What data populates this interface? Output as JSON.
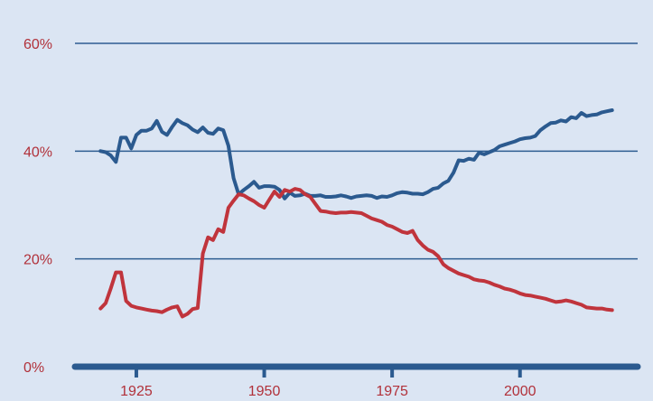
{
  "chart_data": {
    "type": "line",
    "title": "",
    "xlabel": "",
    "ylabel": "",
    "xlim": [
      1913,
      2023
    ],
    "ylim": [
      0,
      60
    ],
    "grid": true,
    "legend": "none",
    "y_ticks": [
      {
        "value": 0,
        "label": "0%"
      },
      {
        "value": 20,
        "label": "20%"
      },
      {
        "value": 40,
        "label": "40%"
      },
      {
        "value": 60,
        "label": "60%"
      }
    ],
    "x_ticks": [
      {
        "value": 1925,
        "label": "1925"
      },
      {
        "value": 1950,
        "label": "1950"
      },
      {
        "value": 1975,
        "label": "1975"
      },
      {
        "value": 2000,
        "label": "2000"
      }
    ],
    "colors": {
      "background": "#dbe5f3",
      "grid": "#2e5d91",
      "tick_labels": "#b1313a",
      "baseline": "#2b5a8f"
    },
    "series": [
      {
        "color": "#2b5a8f",
        "x": [
          1918,
          1919,
          1920,
          1921,
          1922,
          1923,
          1924,
          1925,
          1926,
          1927,
          1928,
          1929,
          1930,
          1931,
          1932,
          1933,
          1934,
          1935,
          1936,
          1937,
          1938,
          1939,
          1940,
          1941,
          1942,
          1943,
          1944,
          1945,
          1946,
          1947,
          1948,
          1949,
          1950,
          1951,
          1952,
          1953,
          1954,
          1955,
          1956,
          1957,
          1958,
          1959,
          1960,
          1961,
          1962,
          1963,
          1964,
          1965,
          1966,
          1967,
          1968,
          1969,
          1970,
          1971,
          1972,
          1973,
          1974,
          1975,
          1976,
          1977,
          1978,
          1979,
          1980,
          1981,
          1982,
          1983,
          1984,
          1985,
          1986,
          1987,
          1988,
          1989,
          1990,
          1991,
          1992,
          1993,
          1994,
          1995,
          1996,
          1997,
          1998,
          1999,
          2000,
          2001,
          2002,
          2003,
          2004,
          2005,
          2006,
          2007,
          2008,
          2009,
          2010,
          2011,
          2012,
          2013,
          2014,
          2015,
          2016,
          2017,
          2018
        ],
        "y": [
          40.0,
          39.8,
          39.2,
          38.0,
          42.5,
          42.5,
          40.5,
          43.0,
          43.8,
          43.8,
          44.2,
          45.6,
          43.6,
          43.0,
          44.5,
          45.8,
          45.2,
          44.8,
          44.0,
          43.5,
          44.4,
          43.4,
          43.2,
          44.2,
          43.9,
          41.0,
          35.0,
          32.0,
          32.8,
          33.5,
          34.3,
          33.2,
          33.5,
          33.5,
          33.4,
          32.8,
          31.2,
          32.3,
          31.7,
          31.8,
          32.1,
          31.7,
          31.7,
          31.8,
          31.5,
          31.5,
          31.6,
          31.8,
          31.6,
          31.3,
          31.6,
          31.7,
          31.8,
          31.7,
          31.3,
          31.6,
          31.5,
          31.8,
          32.2,
          32.4,
          32.3,
          32.1,
          32.1,
          32.0,
          32.4,
          33.0,
          33.2,
          34.0,
          34.5,
          36.0,
          38.3,
          38.2,
          38.6,
          38.4,
          39.7,
          39.4,
          39.8,
          40.2,
          40.9,
          41.2,
          41.5,
          41.8,
          42.2,
          42.4,
          42.5,
          42.8,
          43.9,
          44.6,
          45.2,
          45.3,
          45.7,
          45.5,
          46.3,
          46.1,
          47.1,
          46.5,
          46.7,
          46.8,
          47.2,
          47.4,
          47.6
        ]
      },
      {
        "color": "#c0343c",
        "x": [
          1918,
          1919,
          1920,
          1921,
          1922,
          1923,
          1924,
          1925,
          1926,
          1927,
          1928,
          1929,
          1930,
          1931,
          1932,
          1933,
          1934,
          1935,
          1936,
          1937,
          1938,
          1939,
          1940,
          1941,
          1942,
          1943,
          1944,
          1945,
          1946,
          1947,
          1948,
          1949,
          1950,
          1951,
          1952,
          1953,
          1954,
          1955,
          1956,
          1957,
          1958,
          1959,
          1960,
          1961,
          1962,
          1963,
          1964,
          1965,
          1966,
          1967,
          1968,
          1969,
          1970,
          1971,
          1972,
          1973,
          1974,
          1975,
          1976,
          1977,
          1978,
          1979,
          1980,
          1981,
          1982,
          1983,
          1984,
          1985,
          1986,
          1987,
          1988,
          1989,
          1990,
          1991,
          1992,
          1993,
          1994,
          1995,
          1996,
          1997,
          1998,
          1999,
          2000,
          2001,
          2002,
          2003,
          2004,
          2005,
          2006,
          2007,
          2008,
          2009,
          2010,
          2011,
          2012,
          2013,
          2014,
          2015,
          2016,
          2017,
          2018
        ],
        "y": [
          10.8,
          11.8,
          14.5,
          17.5,
          17.5,
          12.2,
          11.3,
          11.0,
          10.8,
          10.6,
          10.4,
          10.3,
          10.1,
          10.6,
          11.0,
          11.2,
          9.3,
          9.8,
          10.7,
          10.9,
          21.0,
          24.0,
          23.5,
          25.5,
          25.0,
          29.5,
          30.8,
          32.0,
          31.8,
          31.2,
          30.7,
          30.0,
          29.5,
          31.0,
          32.5,
          31.5,
          32.8,
          32.5,
          33.0,
          32.8,
          32.0,
          31.5,
          30.2,
          28.9,
          28.8,
          28.6,
          28.5,
          28.6,
          28.6,
          28.7,
          28.6,
          28.5,
          28.0,
          27.5,
          27.2,
          26.9,
          26.3,
          26.0,
          25.5,
          25.0,
          24.8,
          25.2,
          23.5,
          22.5,
          21.7,
          21.3,
          20.5,
          19.0,
          18.3,
          17.8,
          17.3,
          17.0,
          16.7,
          16.2,
          16.0,
          15.9,
          15.6,
          15.2,
          14.9,
          14.5,
          14.3,
          14.0,
          13.6,
          13.3,
          13.2,
          13.0,
          12.8,
          12.6,
          12.3,
          12.0,
          12.1,
          12.3,
          12.1,
          11.8,
          11.5,
          11.0,
          10.9,
          10.8,
          10.8,
          10.6,
          10.5
        ]
      }
    ]
  }
}
